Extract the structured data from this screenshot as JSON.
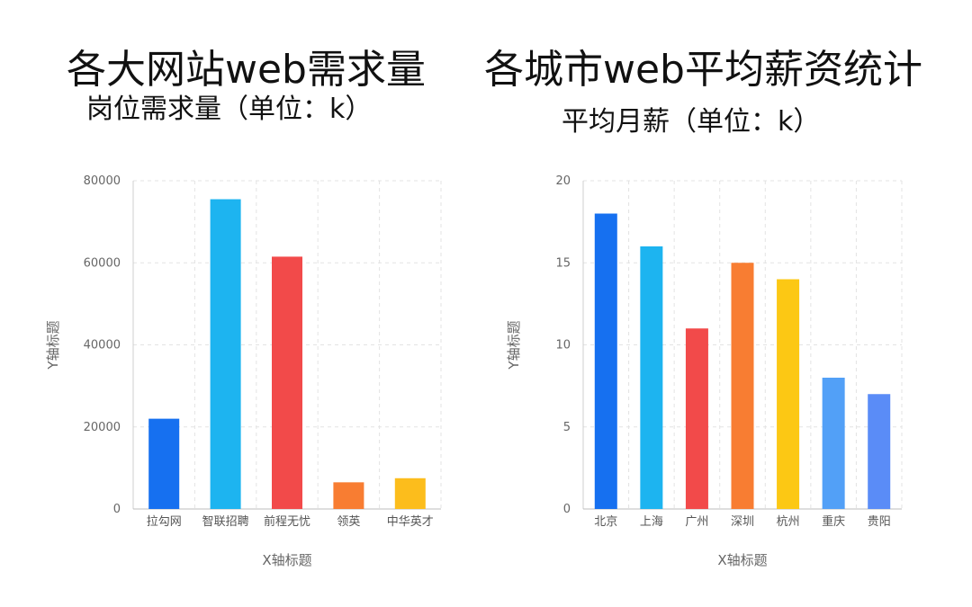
{
  "chart_data": [
    {
      "type": "bar",
      "title": "各大网站web需求量",
      "subtitle": "岗位需求量（单位：k）",
      "xlabel": "X轴标题",
      "ylabel": "Y轴标题",
      "categories": [
        "拉勾网",
        "智联招聘",
        "前程无忧",
        "领英",
        "中华英才"
      ],
      "values": [
        22000,
        75500,
        61500,
        6500,
        7500
      ],
      "colors": [
        "#1670f0",
        "#1db4f0",
        "#f24a4a",
        "#f87d32",
        "#fcbd1c"
      ],
      "ylim": [
        0,
        80000
      ],
      "yticks": [
        "0",
        "20000",
        "40000",
        "60000",
        "80000"
      ],
      "grid": true
    },
    {
      "type": "bar",
      "title": "各城市web平均薪资统计",
      "subtitle": "平均月薪（单位：k）",
      "xlabel": "X轴标题",
      "ylabel": "Y轴标题",
      "categories": [
        "北京",
        "上海",
        "广州",
        "深圳",
        "杭州",
        "重庆",
        "贵阳"
      ],
      "values": [
        18,
        16,
        11,
        15,
        14,
        8,
        7
      ],
      "colors": [
        "#1670f0",
        "#1db4f0",
        "#f24a4a",
        "#f87d32",
        "#fcc814",
        "#52a0f7",
        "#5a8cf7"
      ],
      "ylim": [
        0,
        20
      ],
      "yticks": [
        "0",
        "5",
        "10",
        "15",
        "20"
      ],
      "grid": true
    }
  ]
}
